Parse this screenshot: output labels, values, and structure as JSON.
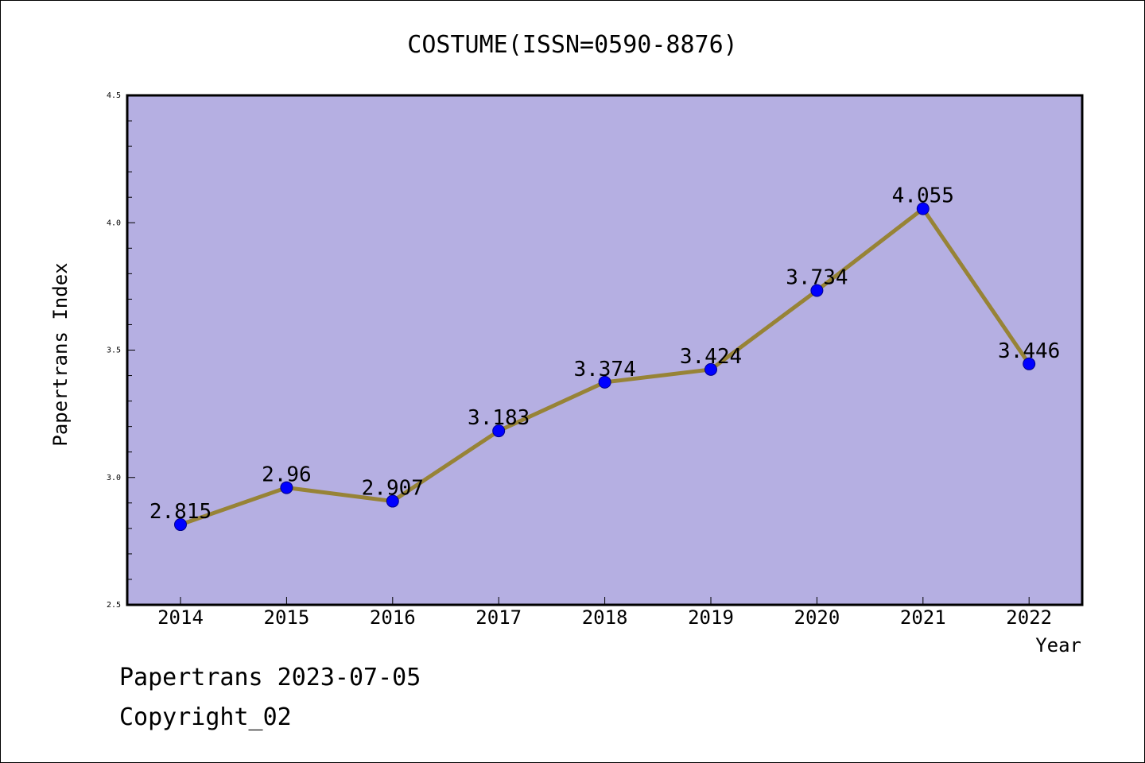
{
  "chart_data": {
    "type": "line",
    "title": "COSTUME(ISSN=0590-8876)",
    "xlabel": "Year",
    "ylabel": "Papertrans Index",
    "categories": [
      "2014",
      "2015",
      "2016",
      "2017",
      "2018",
      "2019",
      "2020",
      "2021",
      "2022"
    ],
    "values": [
      2.815,
      2.96,
      2.907,
      3.183,
      3.374,
      3.424,
      3.734,
      4.055,
      3.446
    ],
    "data_labels": [
      "2.815",
      "2.96",
      "2.907",
      "3.183",
      "3.374",
      "3.424",
      "3.734",
      "4.055",
      "3.446"
    ],
    "ylim": [
      2.5,
      4.5
    ],
    "y_ticks": [
      "2.5",
      "3.0",
      "3.5",
      "4.0",
      "4.5"
    ],
    "y_tick_values": [
      2.5,
      3.0,
      3.5,
      4.0,
      4.5
    ],
    "y_minor_step": 0.1,
    "grid": false,
    "colors": {
      "plot_background": "#b5afe2",
      "line": "#978336",
      "marker": "#0000ff",
      "marker_edge": "#00008b"
    }
  },
  "footer": {
    "line1": "Papertrans 2023-07-05",
    "line2": "Copyright_02"
  }
}
